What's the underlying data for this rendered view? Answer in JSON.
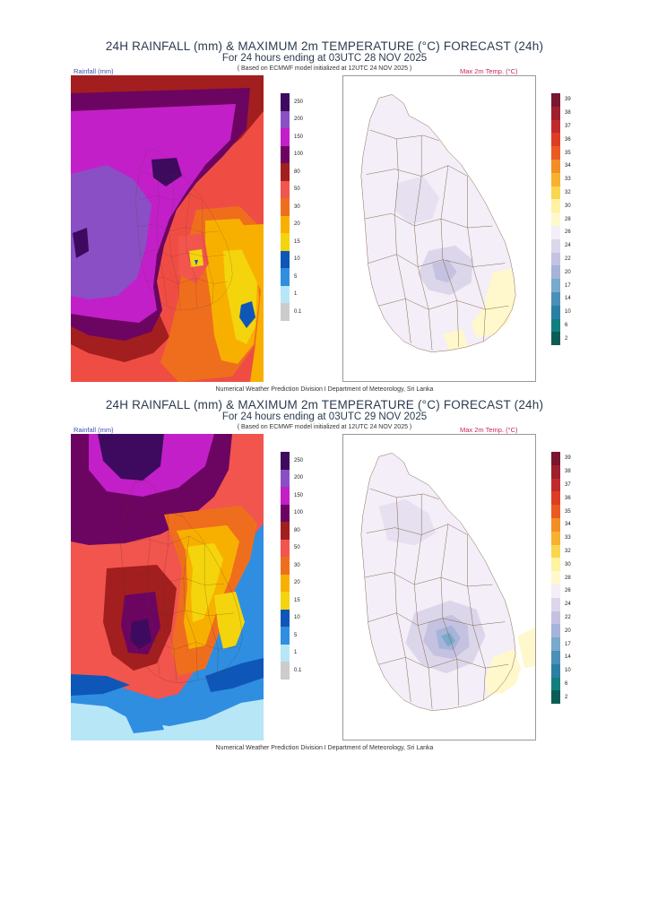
{
  "document": {
    "org_footer": "Numerical Weather Prediction Division I Department of Meteorology, Sri Lanka"
  },
  "colors": {
    "rain_scale": [
      "#3d0a5f",
      "#8a4fc4",
      "#c21fc9",
      "#6c0561",
      "#a31e1e",
      "#f2554d",
      "#ef6e1e",
      "#f8b000",
      "#f4d40d",
      "#0f56b9",
      "#2f8ee0",
      "#b7e6f6"
    ],
    "temp_scale": [
      "#7a1530",
      "#9e1f2e",
      "#c02a2c",
      "#de3c24",
      "#eb5a20",
      "#f38e25",
      "#f6b22f",
      "#fad64f",
      "#fff2a0",
      "#fff8cc",
      "#f3eef7",
      "#dcd6ea",
      "#c5c2e1",
      "#a5b4d8",
      "#78aacb",
      "#4a8fb8",
      "#2b7fa4",
      "#137e7e",
      "#0b5c56"
    ]
  },
  "panels": [
    {
      "title": "24H RAINFALL (mm) & MAXIMUM 2m TEMPERATURE (°C) FORECAST (24h)",
      "subtitle": "For 24 hours ending at 03UTC 28 NOV 2025",
      "basis": "( Based on ECMWF model initialized at 12UTC 24 NOV 2025 )",
      "rain_label": "Rainfall (mm)",
      "temp_label": "Max 2m Temp. (°C)",
      "rain_legend": [
        "250",
        "200",
        "150",
        "100",
        "80",
        "50",
        "30",
        "20",
        "15",
        "10",
        "5",
        "1",
        "0.1"
      ],
      "temp_legend": [
        "39",
        "38",
        "37",
        "36",
        "35",
        "34",
        "33",
        "32",
        "30",
        "28",
        "26",
        "24",
        "22",
        "20",
        "17",
        "14",
        "10",
        "6",
        "2"
      ]
    },
    {
      "title": "24H RAINFALL (mm) & MAXIMUM 2m TEMPERATURE (°C) FORECAST (24h)",
      "subtitle": "For 24 hours ending at 03UTC 29 NOV 2025",
      "basis": "( Based on ECMWF model initialized at 12UTC 24 NOV 2025 )",
      "rain_label": "Rainfall (mm)",
      "temp_label": "Max 2m Temp. (°C)",
      "rain_legend": [
        "250",
        "200",
        "150",
        "100",
        "80",
        "50",
        "30",
        "20",
        "15",
        "10",
        "5",
        "1",
        "0.1"
      ],
      "temp_legend": [
        "39",
        "38",
        "37",
        "36",
        "35",
        "34",
        "33",
        "32",
        "30",
        "28",
        "26",
        "24",
        "22",
        "20",
        "17",
        "14",
        "10",
        "6",
        "2"
      ]
    }
  ]
}
